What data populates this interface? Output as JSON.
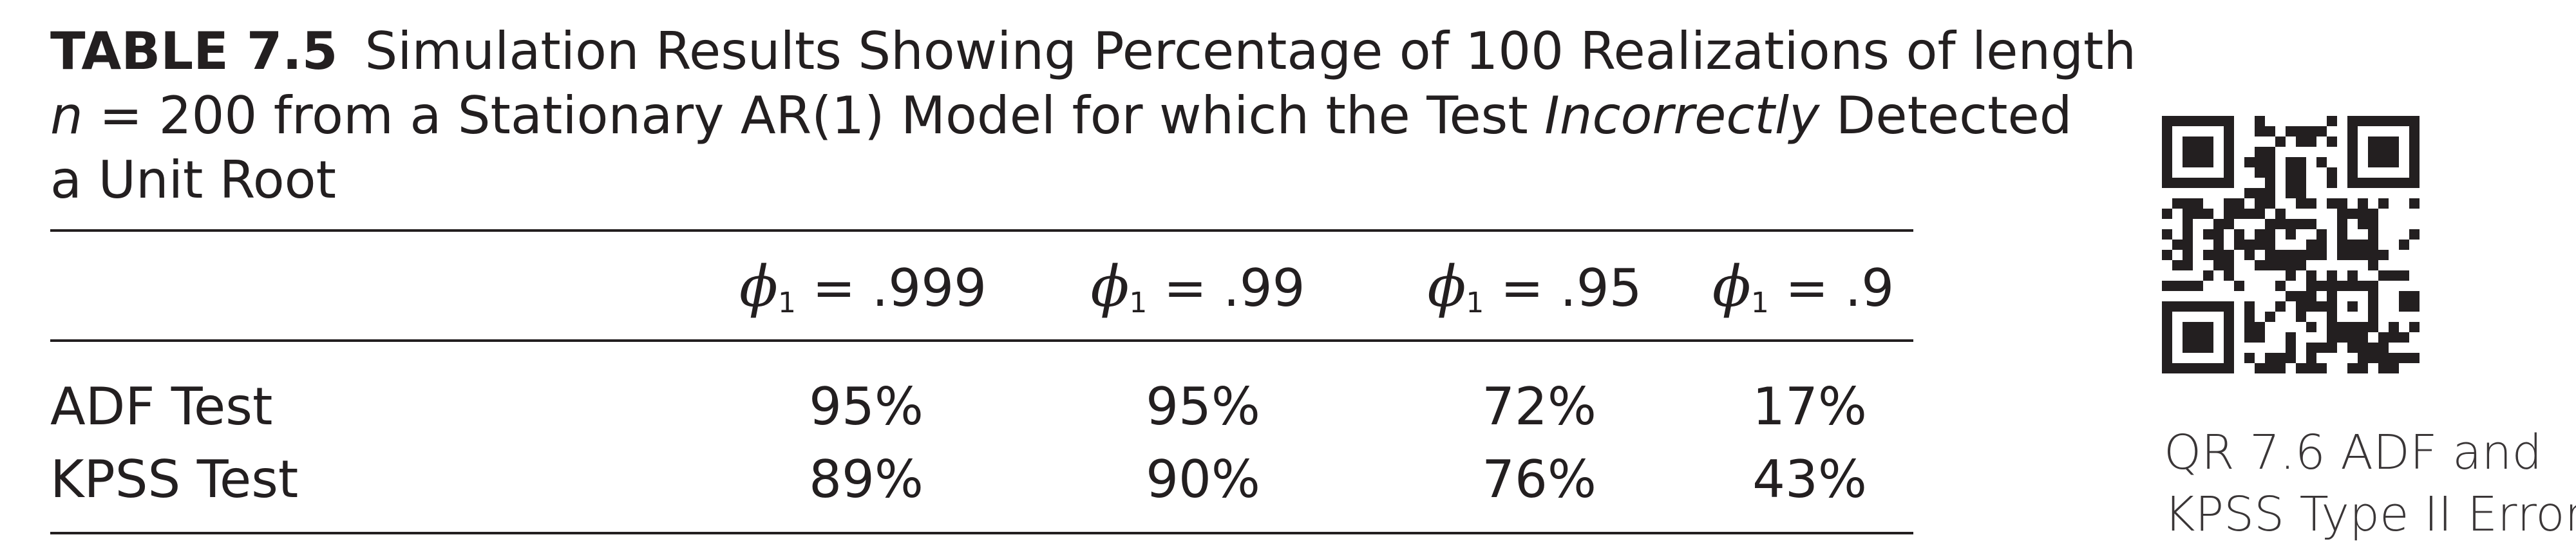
{
  "caption": {
    "label": "TABLE 7.5",
    "line1": "Simulation Results Showing Percentage of 100 Realizations of length",
    "n_var": "n",
    "line2_a": " = 200 from a Stationary AR(1) Model for which the Test ",
    "line2_ital": "Incorrectly",
    "line2_b": " Detected",
    "line3": "a Unit Root"
  },
  "table": {
    "columns": [
      {
        "phi": "ϕ",
        "sub": "1",
        "value": " = .999"
      },
      {
        "phi": "ϕ",
        "sub": "1",
        "value": " = .99"
      },
      {
        "phi": "ϕ",
        "sub": "1",
        "value": " = .95"
      },
      {
        "phi": "ϕ",
        "sub": "1",
        "value": " = .9"
      }
    ],
    "rows": [
      {
        "label": "ADF Test",
        "values": [
          "95%",
          "95%",
          "72%",
          "17%"
        ]
      },
      {
        "label": "KPSS Test",
        "values": [
          "89%",
          "90%",
          "76%",
          "43%"
        ]
      }
    ]
  },
  "qr": {
    "icon": "qr-code-icon",
    "caption_line1": "QR 7.6 ADF and",
    "caption_line2": "KPSS Type II Error"
  }
}
